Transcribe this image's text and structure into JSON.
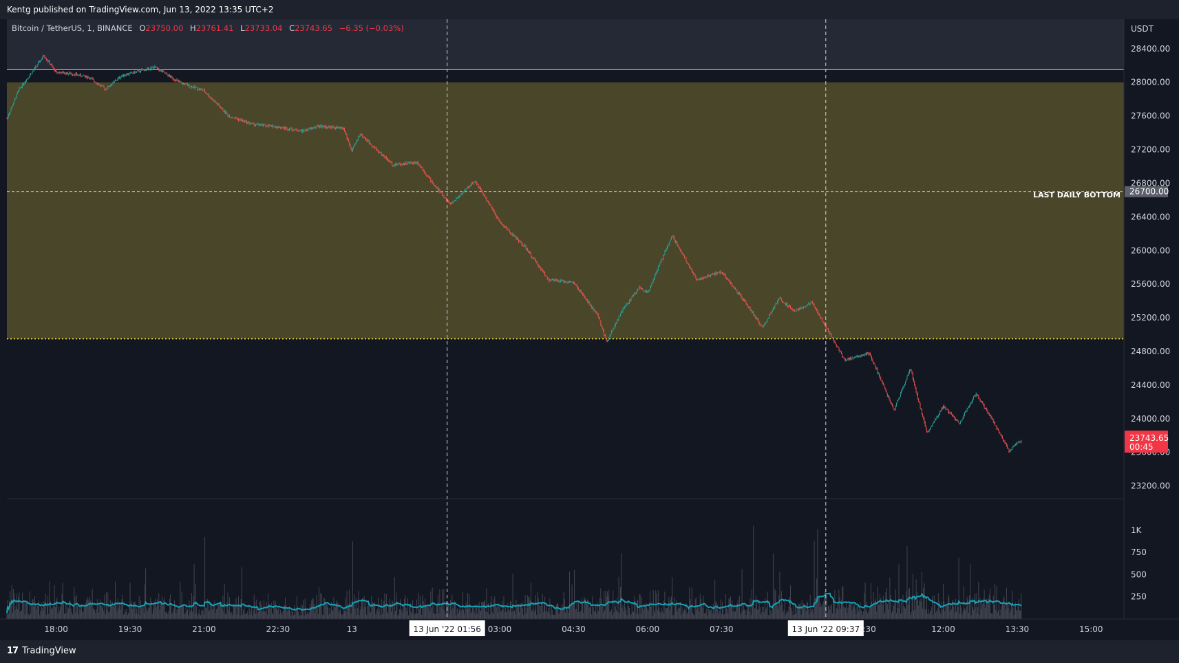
{
  "header": {
    "published": "Kentg published on TradingView.com, Jun 13, 2022 13:35 UTC+2"
  },
  "legend": {
    "symbol": "Bitcoin / TetherUS, 1, BINANCE",
    "o_label": "O",
    "o": "23750.00",
    "h_label": "H",
    "h": "23761.41",
    "l_label": "L",
    "l": "23733.04",
    "c_label": "C",
    "c": "23743.65",
    "change": "−6.35 (−0.03%)"
  },
  "price_axis": {
    "currency": "USDT",
    "ticks": [
      "28400.00",
      "28000.00",
      "27600.00",
      "27200.00",
      "26800.00",
      "26400.00",
      "26000.00",
      "25600.00",
      "25200.00",
      "24800.00",
      "24400.00",
      "24000.00",
      "23600.00",
      "23200.00"
    ],
    "last_daily_bottom_label": "LAST DAILY BOTTOM",
    "last_daily_bottom_value": "26700.00",
    "current_price": "23743.65",
    "countdown": "00:45"
  },
  "volume_axis": {
    "ticks": [
      "1K",
      "750",
      "500",
      "250"
    ]
  },
  "time_axis": {
    "ticks": [
      "18:00",
      "19:30",
      "21:00",
      "22:30",
      "13",
      "03:00",
      "04:30",
      "06:00",
      "07:30",
      ":30",
      "12:00",
      "13:30",
      "15:00"
    ],
    "crosshair_labels": [
      "13 Jun '22   01:56",
      "13 Jun '22   09:37"
    ]
  },
  "footer": {
    "brand": "TradingView",
    "logo": "17"
  },
  "colors": {
    "background": "#131722",
    "zone": "#4a462a",
    "up": "#26a69a",
    "down": "#ef5350",
    "volume_ma": "#15a1b5",
    "support": "#ffeb3b",
    "price_tag": "#f23645"
  },
  "chart_data": {
    "type": "candlestick",
    "symbol": "Bitcoin / TetherUS",
    "interval": "1",
    "exchange": "BINANCE",
    "y_unit": "USDT",
    "ylim": [
      23050,
      28750
    ],
    "x_range": [
      "2022-06-12 17:00",
      "2022-06-13 15:40"
    ],
    "price_path": [
      [
        "2022-06-12 17:00",
        27570
      ],
      [
        "2022-06-12 17:15",
        27920
      ],
      [
        "2022-06-12 17:35",
        28180
      ],
      [
        "2022-06-12 17:45",
        28320
      ],
      [
        "2022-06-12 18:00",
        28120
      ],
      [
        "2022-06-12 18:20",
        28100
      ],
      [
        "2022-06-12 18:40",
        28060
      ],
      [
        "2022-06-12 19:00",
        27920
      ],
      [
        "2022-06-12 19:20",
        28080
      ],
      [
        "2022-06-12 19:40",
        28130
      ],
      [
        "2022-06-12 20:00",
        28180
      ],
      [
        "2022-06-12 20:30",
        28000
      ],
      [
        "2022-06-12 21:00",
        27900
      ],
      [
        "2022-06-12 21:30",
        27600
      ],
      [
        "2022-06-12 22:00",
        27500
      ],
      [
        "2022-06-12 22:30",
        27470
      ],
      [
        "2022-06-12 23:00",
        27420
      ],
      [
        "2022-06-12 23:20",
        27480
      ],
      [
        "2022-06-12 23:50",
        27450
      ],
      [
        "2022-06-13 00:00",
        27180
      ],
      [
        "2022-06-13 00:10",
        27390
      ],
      [
        "2022-06-13 00:30",
        27200
      ],
      [
        "2022-06-13 00:50",
        27020
      ],
      [
        "2022-06-13 01:20",
        27050
      ],
      [
        "2022-06-13 01:40",
        26780
      ],
      [
        "2022-06-13 02:00",
        26550
      ],
      [
        "2022-06-13 02:30",
        26830
      ],
      [
        "2022-06-13 03:00",
        26340
      ],
      [
        "2022-06-13 03:30",
        26050
      ],
      [
        "2022-06-13 04:00",
        25650
      ],
      [
        "2022-06-13 04:30",
        25620
      ],
      [
        "2022-06-13 05:00",
        25220
      ],
      [
        "2022-06-13 05:10",
        24920
      ],
      [
        "2022-06-13 05:30",
        25300
      ],
      [
        "2022-06-13 05:50",
        25560
      ],
      [
        "2022-06-13 06:00",
        25500
      ],
      [
        "2022-06-13 06:30",
        26180
      ],
      [
        "2022-06-13 07:00",
        25650
      ],
      [
        "2022-06-13 07:30",
        25750
      ],
      [
        "2022-06-13 08:00",
        25370
      ],
      [
        "2022-06-13 08:20",
        25080
      ],
      [
        "2022-06-13 08:40",
        25430
      ],
      [
        "2022-06-13 09:00",
        25280
      ],
      [
        "2022-06-13 09:20",
        25380
      ],
      [
        "2022-06-13 09:40",
        25050
      ],
      [
        "2022-06-13 10:00",
        24700
      ],
      [
        "2022-06-13 10:30",
        24780
      ],
      [
        "2022-06-13 11:00",
        24100
      ],
      [
        "2022-06-13 11:20",
        24600
      ],
      [
        "2022-06-13 11:40",
        23830
      ],
      [
        "2022-06-13 12:00",
        24150
      ],
      [
        "2022-06-13 12:20",
        23950
      ],
      [
        "2022-06-13 12:40",
        24300
      ],
      [
        "2022-06-13 13:00",
        23980
      ],
      [
        "2022-06-13 13:20",
        23620
      ],
      [
        "2022-06-13 13:35",
        23743.65
      ]
    ],
    "zone": {
      "top": 28000,
      "bottom": 24950
    },
    "horizontal_lines": [
      {
        "label": "LAST DAILY BOTTOM",
        "value": 26700
      },
      {
        "value": 28150
      },
      {
        "value": 24950
      }
    ],
    "vertical_markers": [
      "2022-06-13 01:56",
      "2022-06-13 09:37"
    ],
    "volume": {
      "max_label": "1K",
      "ylim": [
        0,
        1200
      ],
      "ma_typical": 110
    }
  }
}
